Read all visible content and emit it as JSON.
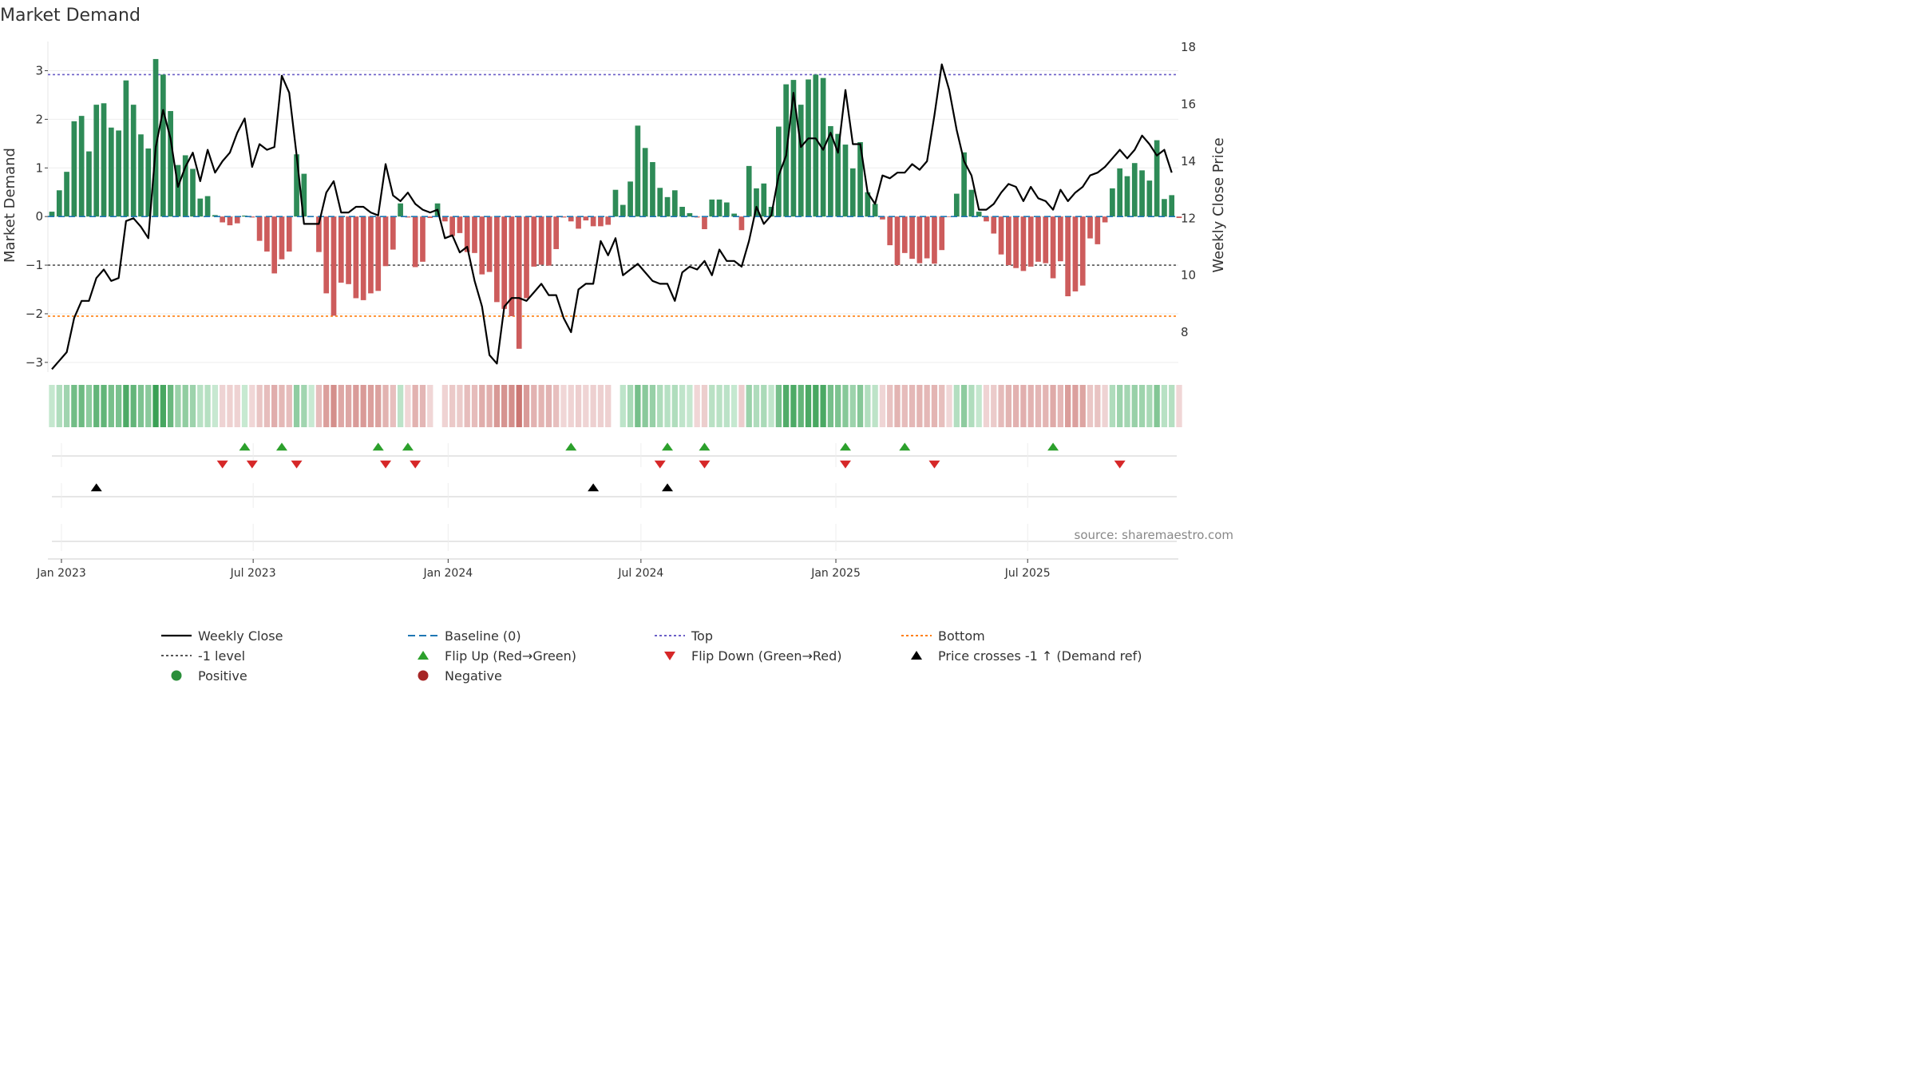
{
  "chart_data": {
    "type": "bar",
    "title": "Market Demand",
    "ylabel_left": "Market Demand",
    "ylabel_right": "Weekly Close Price",
    "source": "source: sharemaestro.com",
    "y_left_range": [
      -3.2,
      3.6
    ],
    "y_left_ticks": [
      3,
      2,
      1,
      0,
      -1,
      -2,
      -3
    ],
    "y_left_tick_labels": [
      "3",
      "2",
      "1",
      "0",
      "−1",
      "−2",
      "−3"
    ],
    "y_right_range": [
      6.6,
      18.2
    ],
    "y_right_ticks": [
      18,
      16,
      14,
      12,
      10,
      8
    ],
    "y_right_tick_labels": [
      "18",
      "16",
      "14",
      "12",
      "10",
      "8"
    ],
    "reference_lines": {
      "top": 2.92,
      "bottom": -2.05,
      "minus_one": -1,
      "baseline": 0
    },
    "x_start": "2022-12-23",
    "x_ticks": [
      {
        "date": "2023-01-01",
        "label": "Jan 2023"
      },
      {
        "date": "2023-07-01",
        "label": "Jul 2023"
      },
      {
        "date": "2024-01-01",
        "label": "Jan 2024"
      },
      {
        "date": "2024-07-01",
        "label": "Jul 2024"
      },
      {
        "date": "2025-01-01",
        "label": "Jan 2025"
      },
      {
        "date": "2025-07-01",
        "label": "Jul 2025"
      }
    ],
    "demand": [
      0.1,
      0.54,
      0.92,
      1.96,
      2.07,
      1.34,
      2.3,
      2.33,
      1.83,
      1.77,
      2.8,
      2.3,
      1.69,
      1.4,
      3.24,
      2.92,
      2.17,
      1.06,
      1.26,
      0.98,
      0.37,
      0.42,
      0.03,
      -0.12,
      -0.18,
      -0.14,
      0.02,
      -0.02,
      -0.5,
      -0.72,
      -1.17,
      -0.88,
      -0.72,
      1.28,
      0.88,
      0,
      -0.73,
      -1.58,
      -2.04,
      -1.36,
      -1.39,
      -1.68,
      -1.72,
      -1.58,
      -1.53,
      -1.02,
      -0.68,
      0.27,
      -0.02,
      -1.04,
      -0.93,
      -0.03,
      0.27,
      -0.1,
      -0.4,
      -0.34,
      -0.73,
      -0.75,
      -1.19,
      -1.14,
      -1.76,
      -1.9,
      -2.05,
      -2.72,
      -1.68,
      -1.03,
      -0.99,
      -1.01,
      -0.67,
      -0.02,
      -0.1,
      -0.25,
      -0.08,
      -0.2,
      -0.2,
      -0.17,
      0.55,
      0.24,
      0.72,
      1.87,
      1.41,
      1.12,
      0.59,
      0.4,
      0.54,
      0.2,
      0.07,
      -0.02,
      -0.26,
      0.35,
      0.35,
      0.29,
      0.06,
      -0.28,
      1.04,
      0.58,
      0.68,
      0.2,
      1.85,
      2.72,
      2.81,
      2.3,
      2.82,
      2.92,
      2.85,
      1.86,
      1.7,
      1.48,
      0.99,
      1.53,
      0.5,
      0.26,
      -0.06,
      -0.59,
      -1,
      -0.75,
      -0.87,
      -0.96,
      -0.86,
      -0.97,
      -0.69,
      -0.01,
      0.47,
      1.32,
      0.55,
      0.1,
      -0.1,
      -0.35,
      -0.78,
      -1,
      -1.06,
      -1.12,
      -1.03,
      -0.93,
      -0.96,
      -1.27,
      -0.92,
      -1.64,
      -1.54,
      -1.42,
      -0.45,
      -0.57,
      -0.12,
      0.58,
      0.99,
      0.83,
      1.1,
      0.95,
      0.74,
      1.57,
      0.36,
      0.44,
      -0.03
    ],
    "weekly_close": [
      6.7,
      7.0,
      7.3,
      8.5,
      9.1,
      9.1,
      9.9,
      10.2,
      9.8,
      9.9,
      11.9,
      12.0,
      11.7,
      11.3,
      14.5,
      15.8,
      14.8,
      13.1,
      13.8,
      14.3,
      13.3,
      14.4,
      13.6,
      14.0,
      14.3,
      15.0,
      15.5,
      13.8,
      14.6,
      14.4,
      14.5,
      17.0,
      16.4,
      14.2,
      11.8,
      11.8,
      11.8,
      12.9,
      13.3,
      12.2,
      12.2,
      12.4,
      12.4,
      12.2,
      12.1,
      13.9,
      12.8,
      12.6,
      12.9,
      12.5,
      12.3,
      12.2,
      12.3,
      11.3,
      11.4,
      10.8,
      11.0,
      9.8,
      8.9,
      7.2,
      6.9,
      8.9,
      9.2,
      9.2,
      9.1,
      9.4,
      9.7,
      9.3,
      9.3,
      8.5,
      8.0,
      9.5,
      9.7,
      9.7,
      11.2,
      10.7,
      11.3,
      10.0,
      10.2,
      10.4,
      10.1,
      9.8,
      9.7,
      9.7,
      9.1,
      10.1,
      10.3,
      10.2,
      10.5,
      10.0,
      10.9,
      10.5,
      10.5,
      10.3,
      11.2,
      12.4,
      11.8,
      12.1,
      13.5,
      14.2,
      16.4,
      14.5,
      14.8,
      14.8,
      14.4,
      15.0,
      14.3,
      16.5,
      14.6,
      14.6,
      12.9,
      12.5,
      13.5,
      13.4,
      13.6,
      13.6,
      13.9,
      13.7,
      14.0,
      15.6,
      17.4,
      16.5,
      15.1,
      14.0,
      13.5,
      12.3,
      12.3,
      12.5,
      12.9,
      13.2,
      13.1,
      12.6,
      13.1,
      12.7,
      12.6,
      12.3,
      13.0,
      12.6,
      12.9,
      13.1,
      13.5,
      13.6,
      13.8,
      14.1,
      14.4,
      14.1,
      14.4,
      14.9,
      14.6,
      14.2,
      14.4,
      13.6
    ],
    "demand_strip_gaps": [
      52,
      76
    ],
    "flip_up_indices": [
      26,
      31,
      44,
      48,
      70,
      83,
      88,
      107,
      115,
      135
    ],
    "flip_down_indices": [
      23,
      27,
      33,
      45,
      49,
      82,
      88,
      107,
      119,
      144
    ],
    "price_cross_indices": [
      6,
      73,
      83
    ],
    "legend": [
      {
        "label": "Weekly Close",
        "symbol": "line",
        "color": "#000000"
      },
      {
        "label": "Baseline (0)",
        "symbol": "dash",
        "color": "#1f77b4"
      },
      {
        "label": "Top",
        "symbol": "dot",
        "color": "#6b5fc7"
      },
      {
        "label": "Bottom",
        "symbol": "dot",
        "color": "#ff7f0e"
      },
      {
        "label": "-1 level",
        "symbol": "dot",
        "color": "#555555"
      },
      {
        "label": "Flip Up (Red→Green)",
        "symbol": "tri-up",
        "color": "#2ca02c"
      },
      {
        "label": "Flip Down (Green→Red)",
        "symbol": "tri-down",
        "color": "#d62728"
      },
      {
        "label": "Price crosses -1 ↑ (Demand ref)",
        "symbol": "tri-up",
        "color": "#000000"
      },
      {
        "label": "Positive",
        "symbol": "circle",
        "color": "#2a8f3a"
      },
      {
        "label": "Negative",
        "symbol": "circle",
        "color": "#a62626"
      }
    ],
    "colors": {
      "positive_bar": "#2e8b57",
      "negative_bar": "#cd5c5c",
      "price_line": "#000000"
    }
  }
}
